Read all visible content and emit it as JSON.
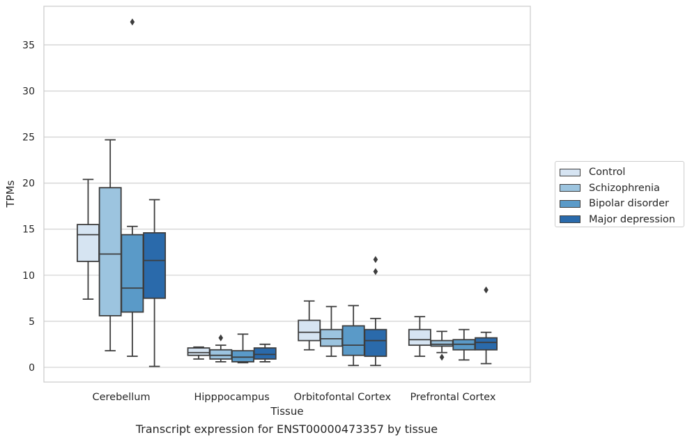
{
  "chart_data": {
    "type": "box",
    "xlabel": "Tissue",
    "ylabel": "TPMs",
    "caption": "Transcript expression for ENST00000473357 by tissue",
    "categories": [
      "Cerebellum",
      "Hipppocampus",
      "Orbitofontal Cortex",
      "Prefrontal Cortex"
    ],
    "ylim": [
      -1.6,
      39.2
    ],
    "yticks": [
      "0",
      "5",
      "10",
      "15",
      "20",
      "25",
      "30",
      "35"
    ],
    "grid": "horizontal",
    "legend_position": "right",
    "series": [
      {
        "name": "Control",
        "color": "#d6e4f2",
        "boxes": [
          {
            "whislo": 7.4,
            "q1": 11.5,
            "median": 14.4,
            "q3": 15.5,
            "whishi": 20.4,
            "fliers": []
          },
          {
            "whislo": 0.9,
            "q1": 1.3,
            "median": 1.6,
            "q3": 2.1,
            "whishi": 2.2,
            "fliers": []
          },
          {
            "whislo": 1.9,
            "q1": 2.9,
            "median": 3.8,
            "q3": 5.1,
            "whishi": 7.2,
            "fliers": []
          },
          {
            "whislo": 1.2,
            "q1": 2.4,
            "median": 3.0,
            "q3": 4.1,
            "whishi": 5.5,
            "fliers": []
          }
        ]
      },
      {
        "name": "Schizophrenia",
        "color": "#9cc4df",
        "boxes": [
          {
            "whislo": 1.8,
            "q1": 5.6,
            "median": 12.3,
            "q3": 19.5,
            "whishi": 24.7,
            "fliers": []
          },
          {
            "whislo": 0.6,
            "q1": 0.9,
            "median": 1.3,
            "q3": 1.9,
            "whishi": 2.4,
            "fliers": [
              3.2
            ]
          },
          {
            "whislo": 1.2,
            "q1": 2.3,
            "median": 3.1,
            "q3": 4.1,
            "whishi": 6.6,
            "fliers": []
          },
          {
            "whislo": 1.6,
            "q1": 2.3,
            "median": 2.5,
            "q3": 2.9,
            "whishi": 3.9,
            "fliers": [
              1.1
            ]
          }
        ]
      },
      {
        "name": "Bipolar disorder",
        "color": "#5a9ac8",
        "boxes": [
          {
            "whislo": 1.2,
            "q1": 6.0,
            "median": 8.6,
            "q3": 14.4,
            "whishi": 15.3,
            "fliers": [
              37.5
            ]
          },
          {
            "whislo": 0.5,
            "q1": 0.6,
            "median": 1.1,
            "q3": 1.8,
            "whishi": 3.6,
            "fliers": []
          },
          {
            "whislo": 0.2,
            "q1": 1.3,
            "median": 2.4,
            "q3": 4.5,
            "whishi": 6.7,
            "fliers": []
          },
          {
            "whislo": 0.8,
            "q1": 1.9,
            "median": 2.5,
            "q3": 3.0,
            "whishi": 4.1,
            "fliers": []
          }
        ]
      },
      {
        "name": "Major depression",
        "color": "#2a6aab",
        "boxes": [
          {
            "whislo": 0.1,
            "q1": 7.5,
            "median": 11.6,
            "q3": 14.6,
            "whishi": 18.2,
            "fliers": []
          },
          {
            "whislo": 0.6,
            "q1": 0.9,
            "median": 1.4,
            "q3": 2.1,
            "whishi": 2.5,
            "fliers": []
          },
          {
            "whislo": 0.2,
            "q1": 1.2,
            "median": 2.9,
            "q3": 4.1,
            "whishi": 5.3,
            "fliers": [
              11.7,
              10.4
            ]
          },
          {
            "whislo": 0.4,
            "q1": 1.9,
            "median": 2.7,
            "q3": 3.2,
            "whishi": 3.8,
            "fliers": [
              8.4
            ]
          }
        ]
      }
    ]
  }
}
